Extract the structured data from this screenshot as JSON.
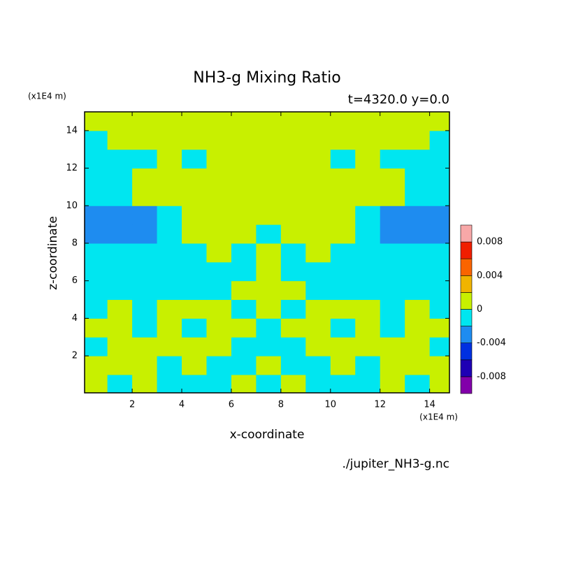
{
  "chart_data": {
    "type": "contour",
    "title": "NH3-g Mixing Ratio",
    "subtitle": "t=4320.0 y=0.0",
    "x_unit": "(x1E4 m)",
    "y_unit": "(x1E4 m)",
    "xlabel": "x-coordinate",
    "ylabel": "z-coordinate",
    "footer": "./jupiter_NH3-g.nc",
    "xlim": [
      0.08,
      14.8
    ],
    "ylim": [
      0.03,
      15.0
    ],
    "xticks": [
      2,
      4,
      6,
      8,
      10,
      12,
      14
    ],
    "yticks": [
      2,
      4,
      6,
      8,
      10,
      12,
      14
    ],
    "x": [
      0.5,
      1.5,
      2.5,
      3.5,
      4.5,
      5.5,
      6.5,
      7.5,
      8.5,
      9.5,
      10.5,
      11.5,
      12.5,
      13.5,
      14.5
    ],
    "z": [
      0.5,
      1.5,
      2.5,
      3.5,
      4.5,
      5.5,
      6.5,
      7.5,
      8.5,
      9.5,
      10.5,
      11.5,
      12.5,
      13.5,
      14.5
    ],
    "values": [
      [
        0.001,
        -0.001,
        0.001,
        -0.001,
        -0.001,
        -0.001,
        0.001,
        -0.001,
        0.001,
        -0.001,
        -0.001,
        -0.001,
        0.001,
        -0.001,
        0.001
      ],
      [
        0.001,
        0.001,
        0.001,
        -0.001,
        0.001,
        -0.001,
        -0.001,
        0.001,
        -0.001,
        -0.001,
        0.001,
        -0.001,
        0.001,
        0.001,
        0.001
      ],
      [
        -0.001,
        0.001,
        0.001,
        0.001,
        0.001,
        0.001,
        -0.001,
        -0.001,
        -0.001,
        0.001,
        0.001,
        0.001,
        0.001,
        0.001,
        -0.001
      ],
      [
        0.001,
        0.001,
        -0.001,
        0.001,
        -0.001,
        0.001,
        0.001,
        -0.001,
        0.001,
        0.001,
        -0.001,
        0.001,
        -0.001,
        0.001,
        0.001
      ],
      [
        -0.001,
        0.001,
        -0.001,
        0.001,
        0.001,
        0.001,
        -0.001,
        0.001,
        -0.001,
        0.001,
        0.001,
        0.001,
        -0.001,
        0.001,
        -0.001
      ],
      [
        -0.001,
        -0.001,
        -0.001,
        -0.001,
        -0.001,
        -0.001,
        0.001,
        0.001,
        0.001,
        -0.001,
        -0.001,
        -0.001,
        -0.001,
        -0.001,
        -0.001
      ],
      [
        -0.001,
        -0.001,
        -0.001,
        -0.001,
        -0.001,
        -0.001,
        -0.001,
        0.001,
        -0.001,
        -0.001,
        -0.001,
        -0.001,
        -0.001,
        -0.001,
        -0.001
      ],
      [
        -0.001,
        -0.001,
        -0.001,
        -0.001,
        -0.001,
        0.001,
        -0.001,
        0.001,
        -0.001,
        0.001,
        -0.001,
        -0.001,
        -0.001,
        -0.001,
        -0.001
      ],
      [
        -0.003,
        -0.003,
        -0.003,
        -0.001,
        0.001,
        0.001,
        0.001,
        -0.001,
        0.001,
        0.001,
        0.001,
        -0.001,
        -0.003,
        -0.003,
        -0.003
      ],
      [
        -0.003,
        -0.003,
        -0.003,
        -0.001,
        0.001,
        0.001,
        0.001,
        0.001,
        0.001,
        0.001,
        0.001,
        -0.001,
        -0.003,
        -0.003,
        -0.003
      ],
      [
        -0.001,
        -0.001,
        0.001,
        0.001,
        0.001,
        0.001,
        0.001,
        0.001,
        0.001,
        0.001,
        0.001,
        0.001,
        0.001,
        -0.001,
        -0.001
      ],
      [
        -0.001,
        -0.001,
        0.001,
        0.001,
        0.001,
        0.001,
        0.001,
        0.001,
        0.001,
        0.001,
        0.001,
        0.001,
        0.001,
        -0.001,
        -0.001
      ],
      [
        -0.001,
        -0.001,
        -0.001,
        0.001,
        -0.001,
        0.001,
        0.001,
        0.001,
        0.001,
        0.001,
        -0.001,
        0.001,
        -0.001,
        -0.001,
        -0.001
      ],
      [
        -0.001,
        0.001,
        0.001,
        0.001,
        0.001,
        0.001,
        0.001,
        0.001,
        0.001,
        0.001,
        0.001,
        0.001,
        0.001,
        0.001,
        -0.001
      ],
      [
        0.001,
        0.001,
        0.001,
        0.001,
        0.001,
        0.001,
        0.001,
        0.001,
        0.001,
        0.001,
        0.001,
        0.001,
        0.001,
        0.001,
        0.001
      ]
    ],
    "levels": [
      -0.008,
      -0.006,
      -0.004,
      -0.002,
      0,
      0.002,
      0.004,
      0.006,
      0.008
    ],
    "colors": [
      "#8200aa",
      "#1e00b4",
      "#0030e0",
      "#1e8cf0",
      "#00e6f0",
      "#c8f000",
      "#f0b400",
      "#fa6400",
      "#f01e00",
      "#f8a8a8"
    ],
    "colorbar_ticks": [
      -0.008,
      -0.004,
      0,
      0.004,
      0.008
    ]
  }
}
